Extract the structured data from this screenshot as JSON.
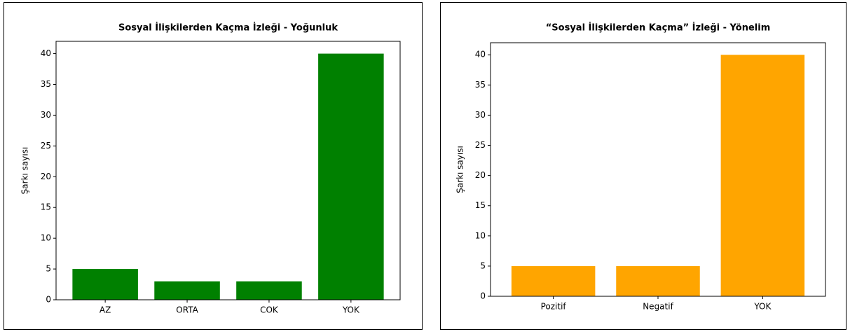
{
  "chart_data": [
    {
      "type": "bar",
      "title": "Sosyal İlişkilerden Kaçma İzleği - Yoğunluk",
      "ylabel": "Şarkı sayısı",
      "categories": [
        "AZ",
        "ORTA",
        "COK",
        "YOK"
      ],
      "values": [
        5,
        3,
        3,
        40
      ],
      "color": "#008000",
      "ylim": [
        0,
        42
      ],
      "yticks": [
        0,
        5,
        10,
        15,
        20,
        25,
        30,
        35,
        40
      ]
    },
    {
      "type": "bar",
      "title": "“Sosyal İlişkilerden Kaçma” İzleği - Yönelim",
      "ylabel": "Şarkı sayısı",
      "categories": [
        "Pozitif",
        "Negatif",
        "YOK"
      ],
      "values": [
        5,
        5,
        40
      ],
      "color": "#ffa500",
      "ylim": [
        0,
        42
      ],
      "yticks": [
        0,
        5,
        10,
        15,
        20,
        25,
        30,
        35,
        40
      ]
    }
  ]
}
